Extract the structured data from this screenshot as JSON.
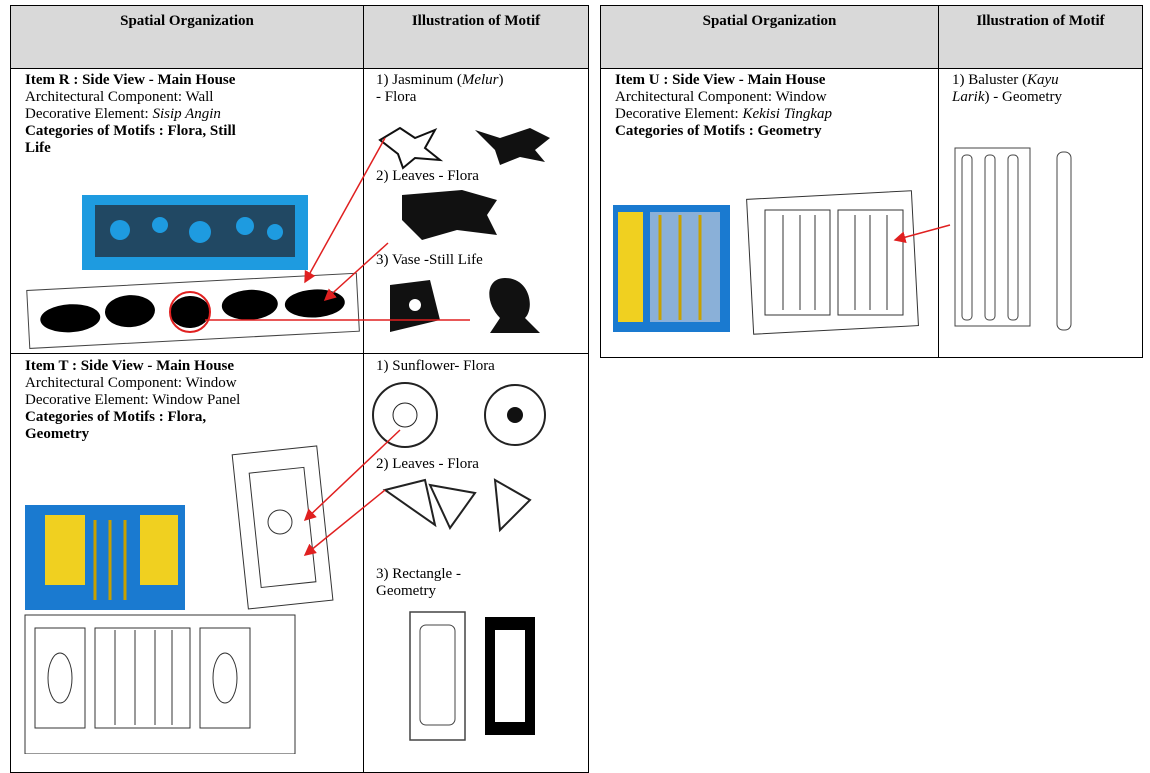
{
  "tables": [
    {
      "header": [
        "Spatial Organization",
        "Illustration of Motif"
      ],
      "rows": [
        {
          "item": "Item R : Side View - Main House",
          "component": "Architectural Component: Wall",
          "element_label": "Decorative Element:",
          "element_value": "Sisip Angin",
          "categories": "Categories of Motifs : Flora, Still Life",
          "motifs": [
            {
              "pre": "1) Jasminum (",
              "italic": "Melur",
              "post": ") - Flora"
            },
            {
              "pre": "2) Leaves - Flora"
            },
            {
              "pre": "3) Vase -Still Life"
            }
          ]
        },
        {
          "item": "Item T :  Side View - Main House",
          "component": "Architectural Component: Window",
          "element_label": "Decorative Element:",
          "element_value": "Window Panel",
          "categories": "Categories of Motifs : Flora, Geometry",
          "motifs": [
            {
              "pre": "1) Sunflower- Flora"
            },
            {
              "pre": "2) Leaves  - Flora"
            },
            {
              "pre": "3) Rectangle - Geometry"
            }
          ]
        }
      ]
    },
    {
      "header": [
        "Spatial Organization",
        "Illustration of Motif"
      ],
      "rows": [
        {
          "item": "Item U : Side View - Main House",
          "component": "Architectural Component: Window",
          "element_label": "Decorative Element:",
          "element_value": "Kekisi Tingkap",
          "categories": "Categories of Motifs : Geometry",
          "motifs": [
            {
              "pre": "1) Baluster (",
              "italic": "Kayu Larik",
              "post": ") - Geometry"
            }
          ]
        }
      ]
    }
  ]
}
